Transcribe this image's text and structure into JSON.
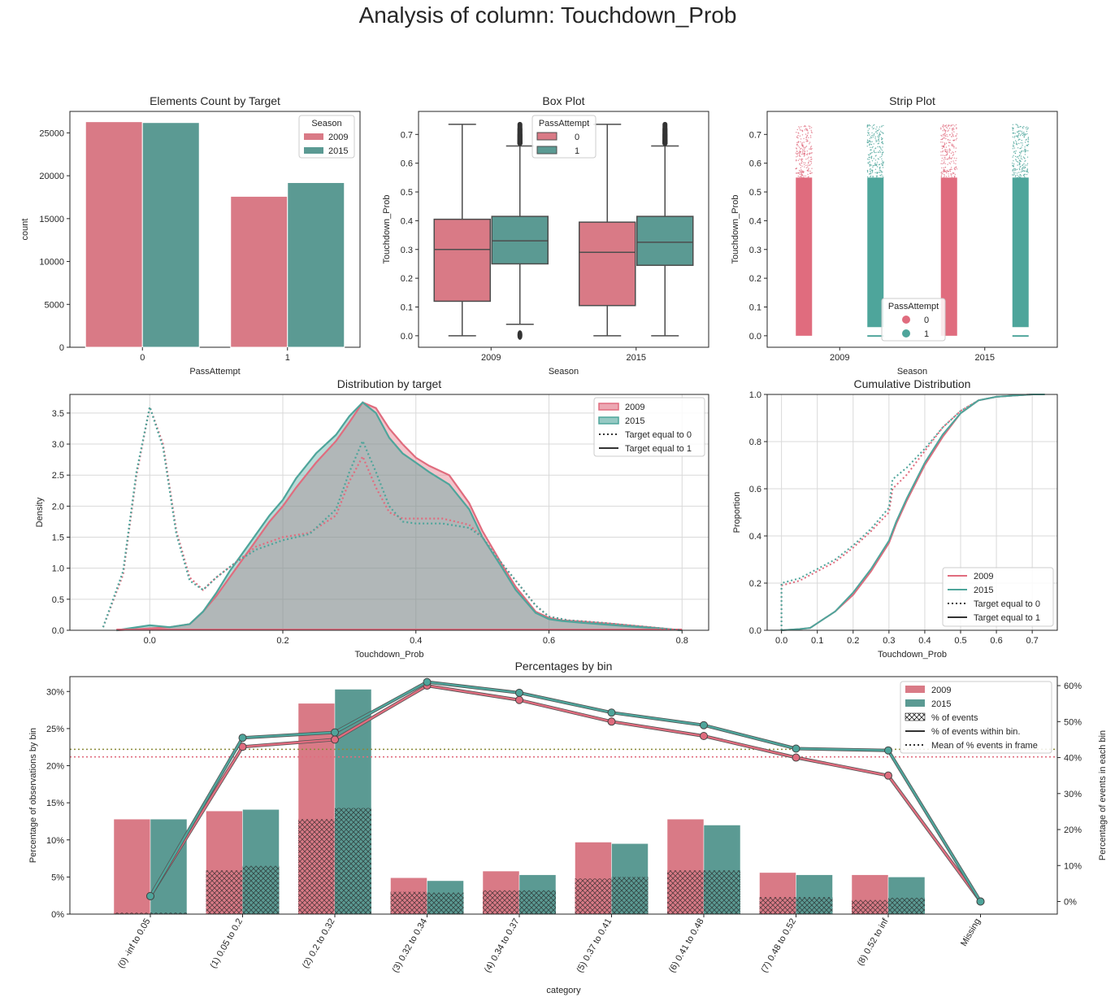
{
  "suptitle": "Analysis of column: Touchdown_Prob",
  "colors": {
    "s2009": "#d97a86",
    "s2015": "#5b9a93",
    "s2009_line": "#e06c7e",
    "s2015_line": "#4ea59b",
    "box_edge": "#4d4d4d"
  },
  "count_chart": {
    "type": "bar",
    "title": "Elements Count by Target",
    "xlabel": "PassAttempt",
    "ylabel": "count",
    "categories": [
      "0",
      "1"
    ],
    "series": [
      {
        "name": "2009",
        "values": [
          26300,
          17600
        ]
      },
      {
        "name": "2015",
        "values": [
          26200,
          19200
        ]
      }
    ],
    "ylim": [
      0,
      27500
    ],
    "yticks": [
      0,
      5000,
      10000,
      15000,
      20000,
      25000
    ],
    "legend_title": "Season",
    "legend_loc": "upper right"
  },
  "box_chart": {
    "type": "box",
    "title": "Box Plot",
    "xlabel": "Season",
    "ylabel": "Touchdown_Prob",
    "categories": [
      "2009",
      "2015"
    ],
    "ylim": [
      -0.04,
      0.78
    ],
    "yticks": [
      0.0,
      0.1,
      0.2,
      0.3,
      0.4,
      0.5,
      0.6,
      0.7
    ],
    "legend_title": "PassAttempt",
    "legend_entries": [
      "0",
      "1"
    ],
    "boxes": [
      {
        "season": "2009",
        "group": "0",
        "whislo": 0.0,
        "q1": 0.12,
        "med": 0.3,
        "q3": 0.405,
        "whishi": 0.735,
        "fliers": []
      },
      {
        "season": "2009",
        "group": "1",
        "whislo": 0.04,
        "q1": 0.25,
        "med": 0.33,
        "q3": 0.415,
        "whishi": 0.66,
        "fliers": [
          0.0,
          0.005,
          0.68,
          0.7,
          0.72,
          0.735
        ]
      },
      {
        "season": "2015",
        "group": "0",
        "whislo": 0.0,
        "q1": 0.105,
        "med": 0.29,
        "q3": 0.395,
        "whishi": 0.735,
        "fliers": []
      },
      {
        "season": "2015",
        "group": "1",
        "whislo": 0.0,
        "q1": 0.245,
        "med": 0.325,
        "q3": 0.415,
        "whishi": 0.66,
        "fliers": [
          0.68,
          0.7,
          0.72,
          0.735
        ]
      }
    ]
  },
  "strip_chart": {
    "type": "scatter",
    "title": "Strip Plot",
    "xlabel": "Season",
    "ylabel": "Touchdown_Prob",
    "categories": [
      "2009",
      "2015"
    ],
    "ylim": [
      -0.04,
      0.78
    ],
    "yticks": [
      0.0,
      0.1,
      0.2,
      0.3,
      0.4,
      0.5,
      0.6,
      0.7
    ],
    "legend_title": "PassAttempt",
    "legend_entries": [
      "0",
      "1"
    ],
    "strips": [
      {
        "season": "2009",
        "group": "0",
        "min": 0.0,
        "dense_max": 0.55,
        "max": 0.735
      },
      {
        "season": "2009",
        "group": "1",
        "min": 0.0,
        "dense_max": 0.55,
        "max": 0.735
      },
      {
        "season": "2015",
        "group": "0",
        "min": 0.0,
        "dense_max": 0.55,
        "max": 0.735
      },
      {
        "season": "2015",
        "group": "1",
        "min": 0.0,
        "dense_max": 0.55,
        "max": 0.735
      }
    ]
  },
  "kde_chart": {
    "type": "area",
    "title": "Distribution by target",
    "xlabel": "Touchdown_Prob",
    "ylabel": "Density",
    "xlim": [
      -0.12,
      0.84
    ],
    "ylim": [
      0,
      3.8
    ],
    "xticks": [
      0.0,
      0.2,
      0.4,
      0.6,
      0.8
    ],
    "yticks": [
      0.0,
      0.5,
      1.0,
      1.5,
      2.0,
      2.5,
      3.0,
      3.5
    ],
    "legend": [
      "2009",
      "2015",
      "Target equal to 0",
      "Target equal to 1"
    ],
    "series": [
      {
        "name": "2009",
        "style": "solid-fill",
        "x": [
          -0.05,
          0.0,
          0.03,
          0.06,
          0.08,
          0.1,
          0.12,
          0.15,
          0.18,
          0.2,
          0.22,
          0.25,
          0.28,
          0.3,
          0.32,
          0.34,
          0.36,
          0.38,
          0.4,
          0.42,
          0.45,
          0.48,
          0.5,
          0.53,
          0.55,
          0.58,
          0.6,
          0.62,
          0.65,
          0.7,
          0.75,
          0.8
        ],
        "y": [
          0,
          0.03,
          0.05,
          0.1,
          0.3,
          0.55,
          0.85,
          1.3,
          1.75,
          2.0,
          2.3,
          2.7,
          3.05,
          3.35,
          3.67,
          3.58,
          3.25,
          3.0,
          2.78,
          2.65,
          2.5,
          2.05,
          1.6,
          1.05,
          0.7,
          0.3,
          0.2,
          0.16,
          0.14,
          0.1,
          0.05,
          0
        ]
      },
      {
        "name": "2015",
        "style": "solid-fill",
        "x": [
          -0.05,
          0.0,
          0.03,
          0.06,
          0.08,
          0.1,
          0.12,
          0.15,
          0.18,
          0.2,
          0.22,
          0.25,
          0.28,
          0.3,
          0.32,
          0.34,
          0.36,
          0.38,
          0.4,
          0.42,
          0.45,
          0.48,
          0.5,
          0.53,
          0.55,
          0.58,
          0.6,
          0.62,
          0.65,
          0.7,
          0.75,
          0.8
        ],
        "y": [
          0,
          0.08,
          0.05,
          0.1,
          0.3,
          0.6,
          0.95,
          1.4,
          1.85,
          2.1,
          2.45,
          2.85,
          3.15,
          3.45,
          3.67,
          3.5,
          3.1,
          2.85,
          2.7,
          2.55,
          2.35,
          1.95,
          1.5,
          1.0,
          0.65,
          0.28,
          0.18,
          0.15,
          0.12,
          0.08,
          0.04,
          0
        ]
      },
      {
        "name": "2009 target 0",
        "style": "dotted",
        "x": [
          -0.07,
          -0.04,
          -0.02,
          0.0,
          0.02,
          0.04,
          0.06,
          0.08,
          0.1,
          0.13,
          0.16,
          0.2,
          0.24,
          0.28,
          0.3,
          0.32,
          0.34,
          0.36,
          0.38,
          0.4,
          0.44,
          0.48,
          0.5,
          0.52,
          0.55,
          0.58,
          0.6,
          0.63,
          0.68,
          0.74,
          0.8
        ],
        "y": [
          0.05,
          0.9,
          2.5,
          3.6,
          3.0,
          1.6,
          0.85,
          0.65,
          0.85,
          1.1,
          1.35,
          1.5,
          1.57,
          1.85,
          2.4,
          2.8,
          2.3,
          1.9,
          1.8,
          1.8,
          1.8,
          1.7,
          1.5,
          1.2,
          0.8,
          0.4,
          0.22,
          0.16,
          0.12,
          0.06,
          0
        ]
      },
      {
        "name": "2015 target 0",
        "style": "dotted",
        "x": [
          -0.07,
          -0.04,
          -0.02,
          0.0,
          0.02,
          0.04,
          0.06,
          0.08,
          0.1,
          0.13,
          0.16,
          0.2,
          0.24,
          0.28,
          0.3,
          0.32,
          0.34,
          0.36,
          0.38,
          0.4,
          0.44,
          0.48,
          0.5,
          0.52,
          0.55,
          0.58,
          0.6,
          0.63,
          0.68,
          0.74,
          0.8
        ],
        "y": [
          0.05,
          0.95,
          2.55,
          3.6,
          2.95,
          1.55,
          0.8,
          0.65,
          0.85,
          1.1,
          1.3,
          1.45,
          1.55,
          1.95,
          2.55,
          3.05,
          2.55,
          2.0,
          1.75,
          1.72,
          1.72,
          1.65,
          1.5,
          1.2,
          0.8,
          0.4,
          0.22,
          0.16,
          0.12,
          0.06,
          0
        ]
      }
    ]
  },
  "cdf_chart": {
    "type": "line",
    "title": "Cumulative Distribution",
    "xlabel": "Touchdown_Prob",
    "ylabel": "Proportion",
    "xlim": [
      -0.04,
      0.77
    ],
    "ylim": [
      0,
      1.0
    ],
    "xticks": [
      0.0,
      0.1,
      0.2,
      0.3,
      0.4,
      0.5,
      0.6,
      0.7
    ],
    "yticks": [
      0.0,
      0.2,
      0.4,
      0.6,
      0.8,
      1.0
    ],
    "legend": [
      "2009",
      "2015",
      "Target equal to 0",
      "Target equal to 1"
    ],
    "series": [
      {
        "name": "2009 target 0",
        "style": "dotted",
        "x": [
          0.0,
          0.0,
          0.05,
          0.1,
          0.15,
          0.2,
          0.25,
          0.3,
          0.31,
          0.35,
          0.4,
          0.45,
          0.5,
          0.55,
          0.6,
          0.65,
          0.7,
          0.735
        ],
        "y": [
          0,
          0.19,
          0.21,
          0.25,
          0.29,
          0.35,
          0.42,
          0.5,
          0.6,
          0.66,
          0.76,
          0.86,
          0.93,
          0.975,
          0.99,
          0.995,
          1.0,
          1.0
        ]
      },
      {
        "name": "2015 target 0",
        "style": "dotted",
        "x": [
          0.0,
          0.0,
          0.05,
          0.1,
          0.15,
          0.2,
          0.25,
          0.3,
          0.31,
          0.35,
          0.4,
          0.45,
          0.5,
          0.55,
          0.6,
          0.65,
          0.7,
          0.735
        ],
        "y": [
          0,
          0.2,
          0.22,
          0.26,
          0.3,
          0.36,
          0.43,
          0.52,
          0.64,
          0.69,
          0.77,
          0.86,
          0.93,
          0.975,
          0.99,
          0.995,
          1.0,
          1.0
        ]
      },
      {
        "name": "2009 target 1",
        "style": "solid",
        "x": [
          0.0,
          0.05,
          0.08,
          0.1,
          0.15,
          0.2,
          0.25,
          0.3,
          0.32,
          0.35,
          0.4,
          0.45,
          0.5,
          0.55,
          0.6,
          0.65,
          0.7,
          0.735
        ],
        "y": [
          0,
          0.005,
          0.01,
          0.03,
          0.08,
          0.15,
          0.25,
          0.37,
          0.45,
          0.55,
          0.7,
          0.82,
          0.92,
          0.975,
          0.99,
          0.995,
          1.0,
          1.0
        ]
      },
      {
        "name": "2015 target 1",
        "style": "solid",
        "x": [
          0.0,
          0.05,
          0.08,
          0.1,
          0.15,
          0.2,
          0.25,
          0.3,
          0.32,
          0.35,
          0.4,
          0.45,
          0.5,
          0.55,
          0.6,
          0.65,
          0.7,
          0.735
        ],
        "y": [
          0,
          0.005,
          0.01,
          0.03,
          0.08,
          0.16,
          0.26,
          0.38,
          0.46,
          0.56,
          0.71,
          0.83,
          0.92,
          0.975,
          0.99,
          0.995,
          1.0,
          1.0
        ]
      }
    ]
  },
  "bin_chart": {
    "type": "bar",
    "title": "Percentages by bin",
    "xlabel": "category",
    "ylabel": "Percentage of observations by bin",
    "y2label": "Percentage of events in each bin",
    "categories": [
      "(0) -inf to 0.05",
      "(1) 0.05 to 0.2",
      "(2) 0.2 to 0.32",
      "(3) 0.32 to 0.34",
      "(4) 0.34 to 0.37",
      "(5) 0.37 to 0.41",
      "(6) 0.41 to 0.48",
      "(7) 0.48 to 0.52",
      "(8) 0.52 to inf",
      "Missing"
    ],
    "ylim": [
      0,
      32
    ],
    "y2lim": [
      -3.5,
      62.5
    ],
    "yticks": [
      0,
      5,
      10,
      15,
      20,
      25,
      30
    ],
    "ytick_labels": [
      "0%",
      "5%",
      "10%",
      "15%",
      "20%",
      "25%",
      "30%"
    ],
    "y2ticks": [
      0,
      10,
      20,
      30,
      40,
      50,
      60
    ],
    "y2tick_labels": [
      "0%",
      "10%",
      "20%",
      "30%",
      "40%",
      "50%",
      "60%"
    ],
    "legend": [
      "2009",
      "2015",
      "% of events",
      "% of events within bin.",
      "Mean of % events in frame"
    ],
    "series": [
      {
        "name": "2009",
        "obs_pct": [
          12.8,
          13.9,
          28.4,
          4.9,
          5.8,
          9.7,
          12.8,
          5.6,
          5.3,
          0
        ],
        "events_pct": [
          0.2,
          5.9,
          12.8,
          3.0,
          3.2,
          4.8,
          5.9,
          2.3,
          1.9,
          0
        ],
        "events_within_bin": [
          1.5,
          43,
          45,
          60,
          56,
          50,
          46,
          40,
          35,
          0
        ],
        "mean_events": 40.2
      },
      {
        "name": "2015",
        "obs_pct": [
          12.8,
          14.1,
          30.3,
          4.5,
          5.3,
          9.5,
          12.0,
          5.3,
          5.0,
          0
        ],
        "events_pct": [
          0.2,
          6.5,
          14.3,
          2.9,
          3.2,
          5.0,
          5.9,
          2.3,
          2.2,
          0
        ],
        "events_within_bin": [
          1.5,
          45.5,
          47,
          61,
          58,
          52.5,
          49,
          42.5,
          42,
          0
        ],
        "mean_events": 42.3
      }
    ]
  }
}
